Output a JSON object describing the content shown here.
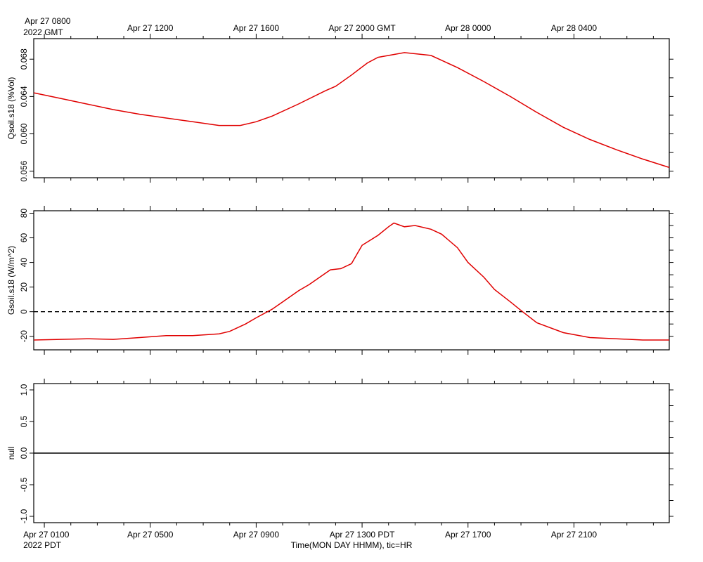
{
  "top_axis": {
    "first_label_line1": "Apr 27 0800",
    "first_label_line2": "2022 GMT",
    "labels": [
      "Apr 27 1200",
      "Apr 27 1600",
      "Apr 27 2000 GMT",
      "Apr 28 0000",
      "Apr 28 0400"
    ]
  },
  "bottom_axis": {
    "first_label_line1": "Apr 27 0100",
    "first_label_line2": "2022 PDT",
    "labels": [
      "Apr 27 0500",
      "Apr 27 0900",
      "Apr 27 1300 PDT",
      "Apr 27 1700",
      "Apr 27 2100"
    ],
    "title": "Time(MON DAY HHMM), tic=HR"
  },
  "colors": {
    "trace": "#e00000",
    "frame": "#000000"
  },
  "chart_data": [
    {
      "type": "line",
      "ylabel": "Qsoil.s18 (%Vol)",
      "x_unit": "hours since Apr 27 0100 PDT",
      "xlim": [
        -0.4,
        23.6
      ],
      "ylim": [
        0.0553,
        0.0702
      ],
      "yticks": [
        "0.056",
        "0.060",
        "0.064",
        "0.068"
      ],
      "ytick_values": [
        0.056,
        0.06,
        0.064,
        0.068
      ],
      "series": [
        {
          "x": [
            -0.4,
            0.6,
            1.6,
            2.6,
            3.6,
            4.6,
            5.6,
            6.6,
            7.4,
            8.0,
            8.6,
            9.6,
            10.6,
            11.0,
            11.6,
            12.2,
            12.6,
            13.6,
            14.6,
            15.6,
            16.6,
            17.6,
            18.6,
            19.6,
            20.6,
            21.6,
            22.6,
            23.6
          ],
          "y": [
            0.0644,
            0.0638,
            0.0632,
            0.0626,
            0.0621,
            0.0617,
            0.0613,
            0.0609,
            0.0609,
            0.0613,
            0.0619,
            0.0632,
            0.0646,
            0.0651,
            0.0663,
            0.0676,
            0.0682,
            0.0687,
            0.0684,
            0.0671,
            0.0656,
            0.064,
            0.0623,
            0.0607,
            0.0594,
            0.0583,
            0.0573,
            0.0564
          ]
        }
      ]
    },
    {
      "type": "line",
      "ylabel": "Gsoil.s18 (W/m^2)",
      "x_unit": "hours since Apr 27 0100 PDT",
      "xlim": [
        -0.4,
        23.6
      ],
      "ylim": [
        -31,
        82
      ],
      "yticks": [
        "-20",
        "0",
        "20",
        "40",
        "60",
        "80"
      ],
      "ytick_values": [
        -20,
        0,
        20,
        40,
        60,
        80
      ],
      "zero_line": {
        "y": 0,
        "style": "dashed"
      },
      "series": [
        {
          "x": [
            -0.4,
            0.6,
            1.6,
            2.6,
            3.6,
            4.6,
            5.6,
            6.6,
            7.0,
            7.6,
            8.0,
            8.6,
            9.0,
            9.6,
            10.0,
            10.6,
            10.8,
            11.2,
            11.6,
            12.0,
            12.6,
            13.0,
            13.2,
            13.6,
            14.0,
            14.6,
            15.0,
            15.6,
            16.0,
            16.6,
            17.0,
            17.6,
            18.0,
            18.6,
            19.6,
            20.6,
            21.6,
            22.6,
            23.6
          ],
          "y": [
            -23,
            -22.5,
            -22,
            -22.5,
            -21,
            -19.5,
            -19.5,
            -18,
            -16,
            -10,
            -5,
            2,
            8,
            17,
            22,
            31,
            34,
            35,
            39,
            54,
            62,
            69,
            72,
            69,
            70,
            67,
            63,
            52,
            40,
            28,
            18,
            8,
            1,
            -9,
            -17,
            -21,
            -22,
            -23,
            -23
          ]
        }
      ]
    },
    {
      "type": "line",
      "ylabel": "null",
      "x_unit": "hours since Apr 27 0100 PDT",
      "xlim": [
        -0.4,
        23.6
      ],
      "ylim": [
        -1.1,
        1.1
      ],
      "yticks": [
        "-1.0",
        "-0.5",
        "0.0",
        "0.5",
        "1.0"
      ],
      "ytick_values": [
        -1.0,
        -0.5,
        0.0,
        0.5,
        1.0
      ],
      "zero_line": {
        "y": 0,
        "style": "solid"
      },
      "series": []
    }
  ]
}
